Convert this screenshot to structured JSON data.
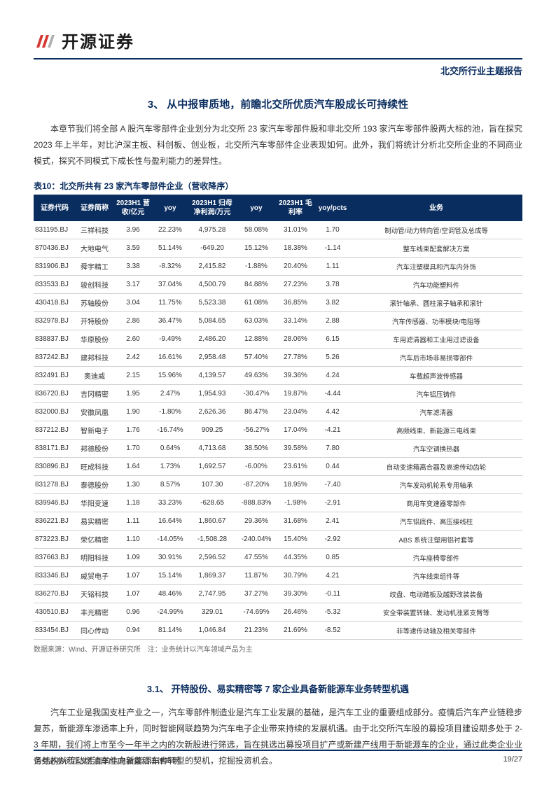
{
  "header": {
    "logo_text": "开源证券",
    "report_type": "北交所行业主题报告"
  },
  "section": {
    "title": "3、 从中报审质地，前瞻北交所优质汽车股成长可持续性",
    "intro": "本章节我们将全部 A 股汽车零部件企业划分为北交所 23 家汽车零部件股和非北交所 193 家汽车零部件股两大标的池，旨在探究 2023 年上半年，对比沪深主板、科创板、创业板，北交所汽车零部件企业表现如何。此外，我们将统计分析北交所企业的不同商业模式，探究不同模式下成长性与盈利能力的差异性。"
  },
  "table": {
    "title": "表10：北交所共有 23 家汽车零部件企业（营收降序）",
    "headers": {
      "code": "证券代码",
      "name": "证券简称",
      "revenue": "2023H1 营收/亿元",
      "yoy1": "yoy",
      "profit": "2023H1 归母净利润/万元",
      "yoy2": "yoy",
      "margin": "2023H1 毛利率",
      "pcts": "yoy/pcts",
      "business": "业务"
    },
    "rows": [
      {
        "code": "831195.BJ",
        "name": "三祥科技",
        "rev": "3.96",
        "yoy1": "22.23%",
        "profit": "4,975.28",
        "yoy2": "58.08%",
        "margin": "31.01%",
        "pcts": "1.70",
        "biz": "制动管/动力转向管/空调管及总成等"
      },
      {
        "code": "870436.BJ",
        "name": "大地电气",
        "rev": "3.59",
        "yoy1": "51.14%",
        "profit": "-649.20",
        "yoy2": "15.12%",
        "margin": "18.38%",
        "pcts": "-1.14",
        "biz": "整车线束配套解决方案"
      },
      {
        "code": "831906.BJ",
        "name": "舜宇精工",
        "rev": "3.38",
        "yoy1": "-8.32%",
        "profit": "2,415.82",
        "yoy2": "-1.88%",
        "margin": "20.40%",
        "pcts": "1.11",
        "biz": "汽车注塑模具和汽车内外饰"
      },
      {
        "code": "833533.BJ",
        "name": "骏创科技",
        "rev": "3.17",
        "yoy1": "37.04%",
        "profit": "4,500.79",
        "yoy2": "84.88%",
        "margin": "27.23%",
        "pcts": "3.78",
        "biz": "汽车功能塑料件"
      },
      {
        "code": "430418.BJ",
        "name": "苏轴股份",
        "rev": "3.04",
        "yoy1": "11.75%",
        "profit": "5,523.38",
        "yoy2": "61.08%",
        "margin": "36.85%",
        "pcts": "3.82",
        "biz": "滚针轴承、圆柱滚子轴承和滚针"
      },
      {
        "code": "832978.BJ",
        "name": "开特股份",
        "rev": "2.86",
        "yoy1": "36.47%",
        "profit": "5,084.65",
        "yoy2": "63.03%",
        "margin": "33.14%",
        "pcts": "2.88",
        "biz": "汽车传感器、功率模块/电阻等"
      },
      {
        "code": "838837.BJ",
        "name": "华原股份",
        "rev": "2.60",
        "yoy1": "-9.49%",
        "profit": "2,486.20",
        "yoy2": "12.88%",
        "margin": "28.06%",
        "pcts": "6.15",
        "biz": "车用滤清器和工业用过滤设备"
      },
      {
        "code": "837242.BJ",
        "name": "建邦科技",
        "rev": "2.42",
        "yoy1": "16.61%",
        "profit": "2,958.48",
        "yoy2": "57.40%",
        "margin": "27.78%",
        "pcts": "5.26",
        "biz": "汽车后市场非易损零部件"
      },
      {
        "code": "832491.BJ",
        "name": "奥迪威",
        "rev": "2.15",
        "yoy1": "15.96%",
        "profit": "4,139.57",
        "yoy2": "49.63%",
        "margin": "39.36%",
        "pcts": "4.24",
        "biz": "车载超声波传感器"
      },
      {
        "code": "836720.BJ",
        "name": "吉冈精密",
        "rev": "1.95",
        "yoy1": "2.47%",
        "profit": "1,954.93",
        "yoy2": "-30.47%",
        "margin": "19.87%",
        "pcts": "-4.44",
        "biz": "汽车铝压铸件"
      },
      {
        "code": "832000.BJ",
        "name": "安徽凤凰",
        "rev": "1.90",
        "yoy1": "-1.80%",
        "profit": "2,626.36",
        "yoy2": "86.47%",
        "margin": "23.04%",
        "pcts": "4.42",
        "biz": "汽车滤清器"
      },
      {
        "code": "837212.BJ",
        "name": "智新电子",
        "rev": "1.76",
        "yoy1": "-16.74%",
        "profit": "909.25",
        "yoy2": "-56.27%",
        "margin": "17.04%",
        "pcts": "-4.21",
        "biz": "高频线束、新能源三电线束"
      },
      {
        "code": "838171.BJ",
        "name": "邦德股份",
        "rev": "1.70",
        "yoy1": "0.64%",
        "profit": "4,713.68",
        "yoy2": "38.50%",
        "margin": "39.58%",
        "pcts": "7.80",
        "biz": "汽车空调换热器"
      },
      {
        "code": "830896.BJ",
        "name": "旺成科技",
        "rev": "1.64",
        "yoy1": "1.73%",
        "profit": "1,692.57",
        "yoy2": "-6.00%",
        "margin": "23.61%",
        "pcts": "0.44",
        "biz": "自动变速箱离合器及高速传动齿轮"
      },
      {
        "code": "831278.BJ",
        "name": "泰德股份",
        "rev": "1.30",
        "yoy1": "8.57%",
        "profit": "107.30",
        "yoy2": "-87.20%",
        "margin": "18.95%",
        "pcts": "-7.40",
        "biz": "汽车发动机轮系专用轴承"
      },
      {
        "code": "839946.BJ",
        "name": "华阳变速",
        "rev": "1.18",
        "yoy1": "33.23%",
        "profit": "-628.65",
        "yoy2": "-888.83%",
        "margin": "-1.98%",
        "pcts": "-2.91",
        "biz": "商用车变速器零部件"
      },
      {
        "code": "836221.BJ",
        "name": "易实精密",
        "rev": "1.11",
        "yoy1": "16.64%",
        "profit": "1,860.67",
        "yoy2": "29.36%",
        "margin": "31.68%",
        "pcts": "2.41",
        "biz": "汽车铝底件、高压接线柱"
      },
      {
        "code": "873223.BJ",
        "name": "荣亿精密",
        "rev": "1.10",
        "yoy1": "-14.05%",
        "profit": "-1,508.28",
        "yoy2": "-240.04%",
        "margin": "15.40%",
        "pcts": "-2.92",
        "biz": "ABS 系统注塑用铝衬套等"
      },
      {
        "code": "837663.BJ",
        "name": "明阳科技",
        "rev": "1.09",
        "yoy1": "30.91%",
        "profit": "2,596.52",
        "yoy2": "47.55%",
        "margin": "44.35%",
        "pcts": "0.85",
        "biz": "汽车座椅零部件"
      },
      {
        "code": "833346.BJ",
        "name": "威贸电子",
        "rev": "1.07",
        "yoy1": "15.14%",
        "profit": "1,869.37",
        "yoy2": "11.87%",
        "margin": "30.79%",
        "pcts": "4.21",
        "biz": "汽车线束组件等"
      },
      {
        "code": "836270.BJ",
        "name": "天铭科技",
        "rev": "1.07",
        "yoy1": "48.46%",
        "profit": "2,747.95",
        "yoy2": "37.27%",
        "margin": "39.30%",
        "pcts": "-0.11",
        "biz": "绞盘、电动踏板及越野改装装备"
      },
      {
        "code": "430510.BJ",
        "name": "丰光精密",
        "rev": "0.96",
        "yoy1": "-24.99%",
        "profit": "329.01",
        "yoy2": "-74.69%",
        "margin": "26.46%",
        "pcts": "-5.32",
        "biz": "安全带装置转轴、发动机涨紧支臂等"
      },
      {
        "code": "833454.BJ",
        "name": "同心传动",
        "rev": "0.94",
        "yoy1": "81.14%",
        "profit": "1,046.84",
        "yoy2": "21.23%",
        "margin": "21.69%",
        "pcts": "-8.52",
        "biz": "非等速传动轴及相关零部件"
      }
    ],
    "note": "数据来源：Wind、开源证券研究所　注：业务统计以汽车领域产品为主"
  },
  "subsection": {
    "title": "3.1、 开特股份、易实精密等 7 家企业具备新能源车业务转型机遇",
    "text": "汽车工业是我国支柱产业之一，汽车零部件制造业是汽车工业发展的基础，是汽车工业的重要组成部分。疫情后汽车产业链稳步复苏，新能源车渗透率上升，同时智能网联趋势为汽车电子企业带来持续的发展机遇。由于北交所汽车股的募投项目建设期多处于 2-3 年期，我们将上市至今一年半之内的次新股进行筛选，旨在挑选出募投项目扩产或新建产线用于新能源车的企业，通过此类企业业务结构从传动燃油车件向新能源车件转型的契机，挖掘投资机会。"
  },
  "footer": {
    "disclaimer": "请务必参阅正文后面的信息披露和法律声明",
    "page": "19/27"
  },
  "colors": {
    "primary": "#0a2d5f",
    "logo_red": "#d63833",
    "text": "#333333",
    "border": "#d0d0d0"
  }
}
